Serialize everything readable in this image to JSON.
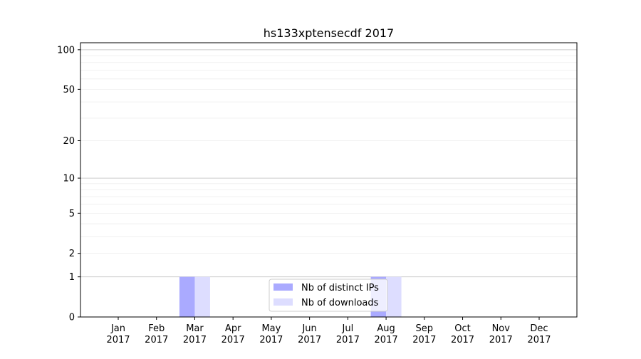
{
  "chart_data": {
    "type": "bar",
    "title": "hs133xptensecdf 2017",
    "xlabel": "",
    "ylabel": "",
    "yscale": "log(1+y)",
    "ylim": [
      0,
      113
    ],
    "yticks": [
      0,
      1,
      2,
      5,
      10,
      20,
      50,
      100
    ],
    "categories": [
      "Jan\n2017",
      "Feb\n2017",
      "Mar\n2017",
      "Apr\n2017",
      "May\n2017",
      "Jun\n2017",
      "Jul\n2017",
      "Aug\n2017",
      "Sep\n2017",
      "Oct\n2017",
      "Nov\n2017",
      "Dec\n2017"
    ],
    "series": [
      {
        "name": "Nb of distinct IPs",
        "color": "#aaaaff",
        "values": [
          0,
          0,
          1,
          0,
          0,
          0,
          0,
          1,
          0,
          0,
          0,
          0
        ]
      },
      {
        "name": "Nb of downloads",
        "color": "#ddddff",
        "values": [
          0,
          0,
          1,
          0,
          0,
          0,
          0,
          1,
          0,
          0,
          0,
          0
        ]
      }
    ],
    "grid": {
      "major": true,
      "minor": true
    },
    "legend_position": "lower-center"
  }
}
